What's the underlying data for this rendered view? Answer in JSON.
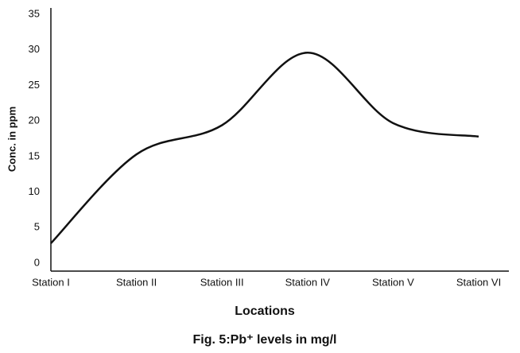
{
  "chart_data": {
    "type": "line",
    "title": "Fig. 5:Pb⁺ levels in mg/l",
    "x_label": "Locations",
    "y_label": "Conc. in ppm",
    "categories": [
      "Station I",
      "Station II",
      "Station III",
      "Station IV",
      "Station V",
      "Station VI"
    ],
    "values": [
      2.8,
      15.3,
      19.4,
      29.6,
      19.7,
      17.8
    ],
    "color": "#111111",
    "ylim": [
      0,
      35
    ],
    "yticks": [
      0,
      5,
      10,
      15,
      20,
      25,
      30,
      35
    ],
    "grid": false
  }
}
